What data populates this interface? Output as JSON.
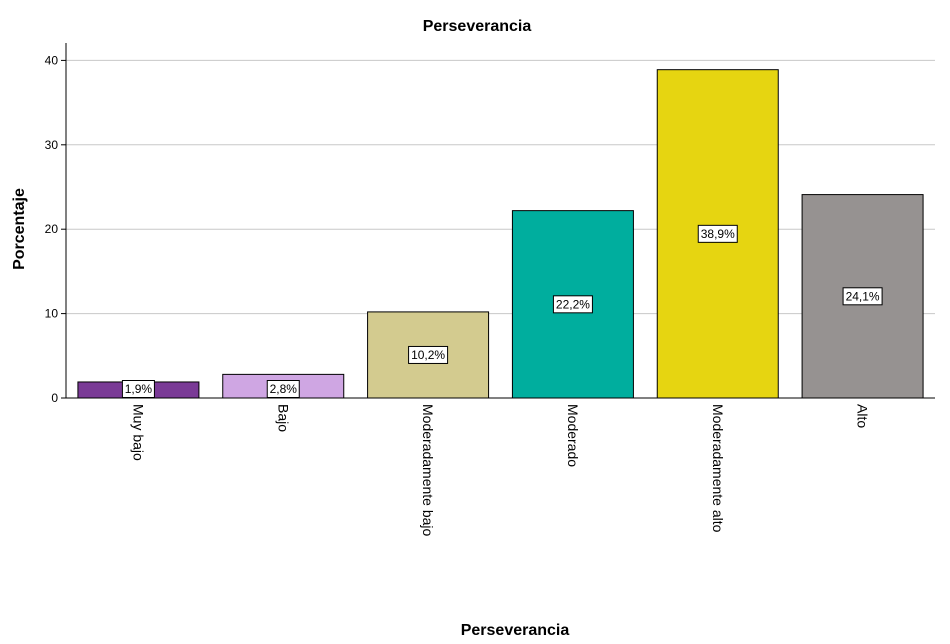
{
  "chart_data": {
    "type": "bar",
    "title": "Perseverancia",
    "xlabel": "Perseverancia",
    "ylabel": "Porcentaje",
    "ylim": [
      0,
      42
    ],
    "yticks": [
      0,
      10,
      20,
      30,
      40
    ],
    "grid": true,
    "categories": [
      "Muy bajo",
      "Bajo",
      "Moderadamente bajo",
      "Moderado",
      "Moderadamente alto",
      "Alto"
    ],
    "values": [
      1.9,
      2.8,
      10.2,
      22.2,
      38.9,
      24.1
    ],
    "data_labels": [
      "1,9%",
      "2,8%",
      "10,2%",
      "22,2%",
      "38,9%",
      "24,1%"
    ],
    "colors": [
      "#7a3a96",
      "#cfa6e3",
      "#d3cb8f",
      "#00ae9e",
      "#e6d511",
      "#969291"
    ]
  }
}
